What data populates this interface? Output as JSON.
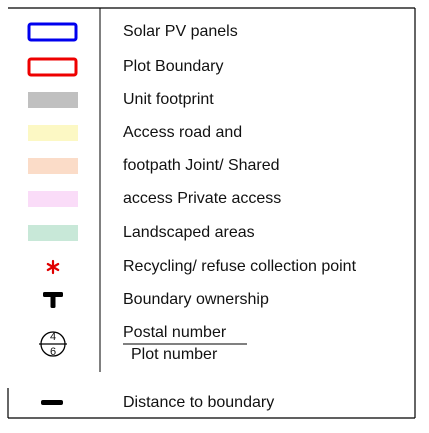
{
  "legend": {
    "items": [
      {
        "label": "Solar PV panels"
      },
      {
        "label": "Plot Boundary"
      },
      {
        "label": "Unit footprint"
      },
      {
        "label": "Access road and"
      },
      {
        "label": "footpath Joint/ Shared"
      },
      {
        "label": "access Private access"
      },
      {
        "label": "Landscaped areas"
      },
      {
        "label": "Recycling/ refuse collection point"
      },
      {
        "label": "Boundary ownership"
      },
      {
        "label": "Postal number",
        "sublabel": "Plot number",
        "symbol_top": "4",
        "symbol_bottom": "6"
      },
      {
        "label": "Distance to boundary"
      }
    ]
  }
}
